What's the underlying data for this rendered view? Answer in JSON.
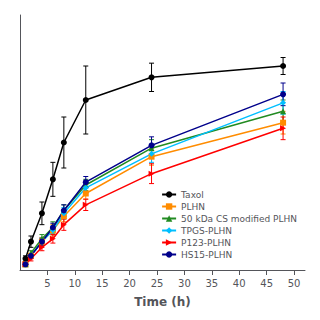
{
  "chart_data": {
    "type": "line",
    "xlabel": "Time (h)",
    "xlim": [
      0,
      52
    ],
    "xticks": [
      5,
      10,
      15,
      20,
      25,
      30,
      35,
      40,
      45,
      50
    ],
    "ylim": [
      0,
      90
    ],
    "tick_labels": "x",
    "grid": false,
    "legend": "lower right",
    "series": [
      {
        "name": "Taxol",
        "color": "#000000",
        "marker": "circle",
        "x": [
          1,
          2,
          4,
          6,
          8,
          12,
          24,
          48
        ],
        "values": [
          4,
          10,
          20,
          32,
          45,
          60,
          68,
          72
        ],
        "yerr": [
          1,
          2,
          4,
          6,
          9,
          12,
          5,
          3
        ]
      },
      {
        "name": "PLHN",
        "color": "#FF8C00",
        "marker": "square",
        "x": [
          1,
          2,
          4,
          6,
          8,
          12,
          24,
          48
        ],
        "values": [
          2,
          5,
          10,
          14,
          19,
          27,
          40,
          52
        ],
        "yerr": [
          0.5,
          0.8,
          1.5,
          2,
          2,
          2,
          3,
          4
        ]
      },
      {
        "name": "50 kDa CS modified PLHN",
        "color": "#228B22",
        "marker": "triangle",
        "x": [
          1,
          2,
          4,
          6,
          8,
          12,
          24,
          48
        ],
        "values": [
          2,
          6,
          11,
          15,
          21,
          30,
          43,
          56
        ],
        "yerr": [
          0.5,
          0.8,
          1.5,
          2,
          2,
          2,
          3,
          4
        ]
      },
      {
        "name": "TPGS-PLHN",
        "color": "#00BFFF",
        "marker": "diamond",
        "x": [
          1,
          2,
          4,
          6,
          8,
          12,
          24,
          48
        ],
        "values": [
          2,
          5,
          10,
          14,
          20,
          29,
          41,
          59
        ],
        "yerr": [
          0.4,
          0.8,
          1.2,
          1.5,
          2,
          2,
          3,
          4
        ]
      },
      {
        "name": "P123-PLHN",
        "color": "#FF0000",
        "marker": "triangle-right",
        "x": [
          1,
          2,
          4,
          6,
          8,
          12,
          24,
          48
        ],
        "values": [
          2,
          4,
          8,
          11,
          16,
          23,
          34,
          50
        ],
        "yerr": [
          0.4,
          0.8,
          1.2,
          1.5,
          2,
          2,
          3.5,
          4
        ]
      },
      {
        "name": "HS15-PLHN",
        "color": "#00008B",
        "marker": "circle",
        "x": [
          1,
          2,
          4,
          6,
          8,
          12,
          24,
          48
        ],
        "values": [
          2,
          5,
          10,
          15,
          21,
          31,
          44,
          62
        ],
        "yerr": [
          0.4,
          0.8,
          1.2,
          1.5,
          2,
          2,
          3,
          4
        ]
      }
    ]
  }
}
